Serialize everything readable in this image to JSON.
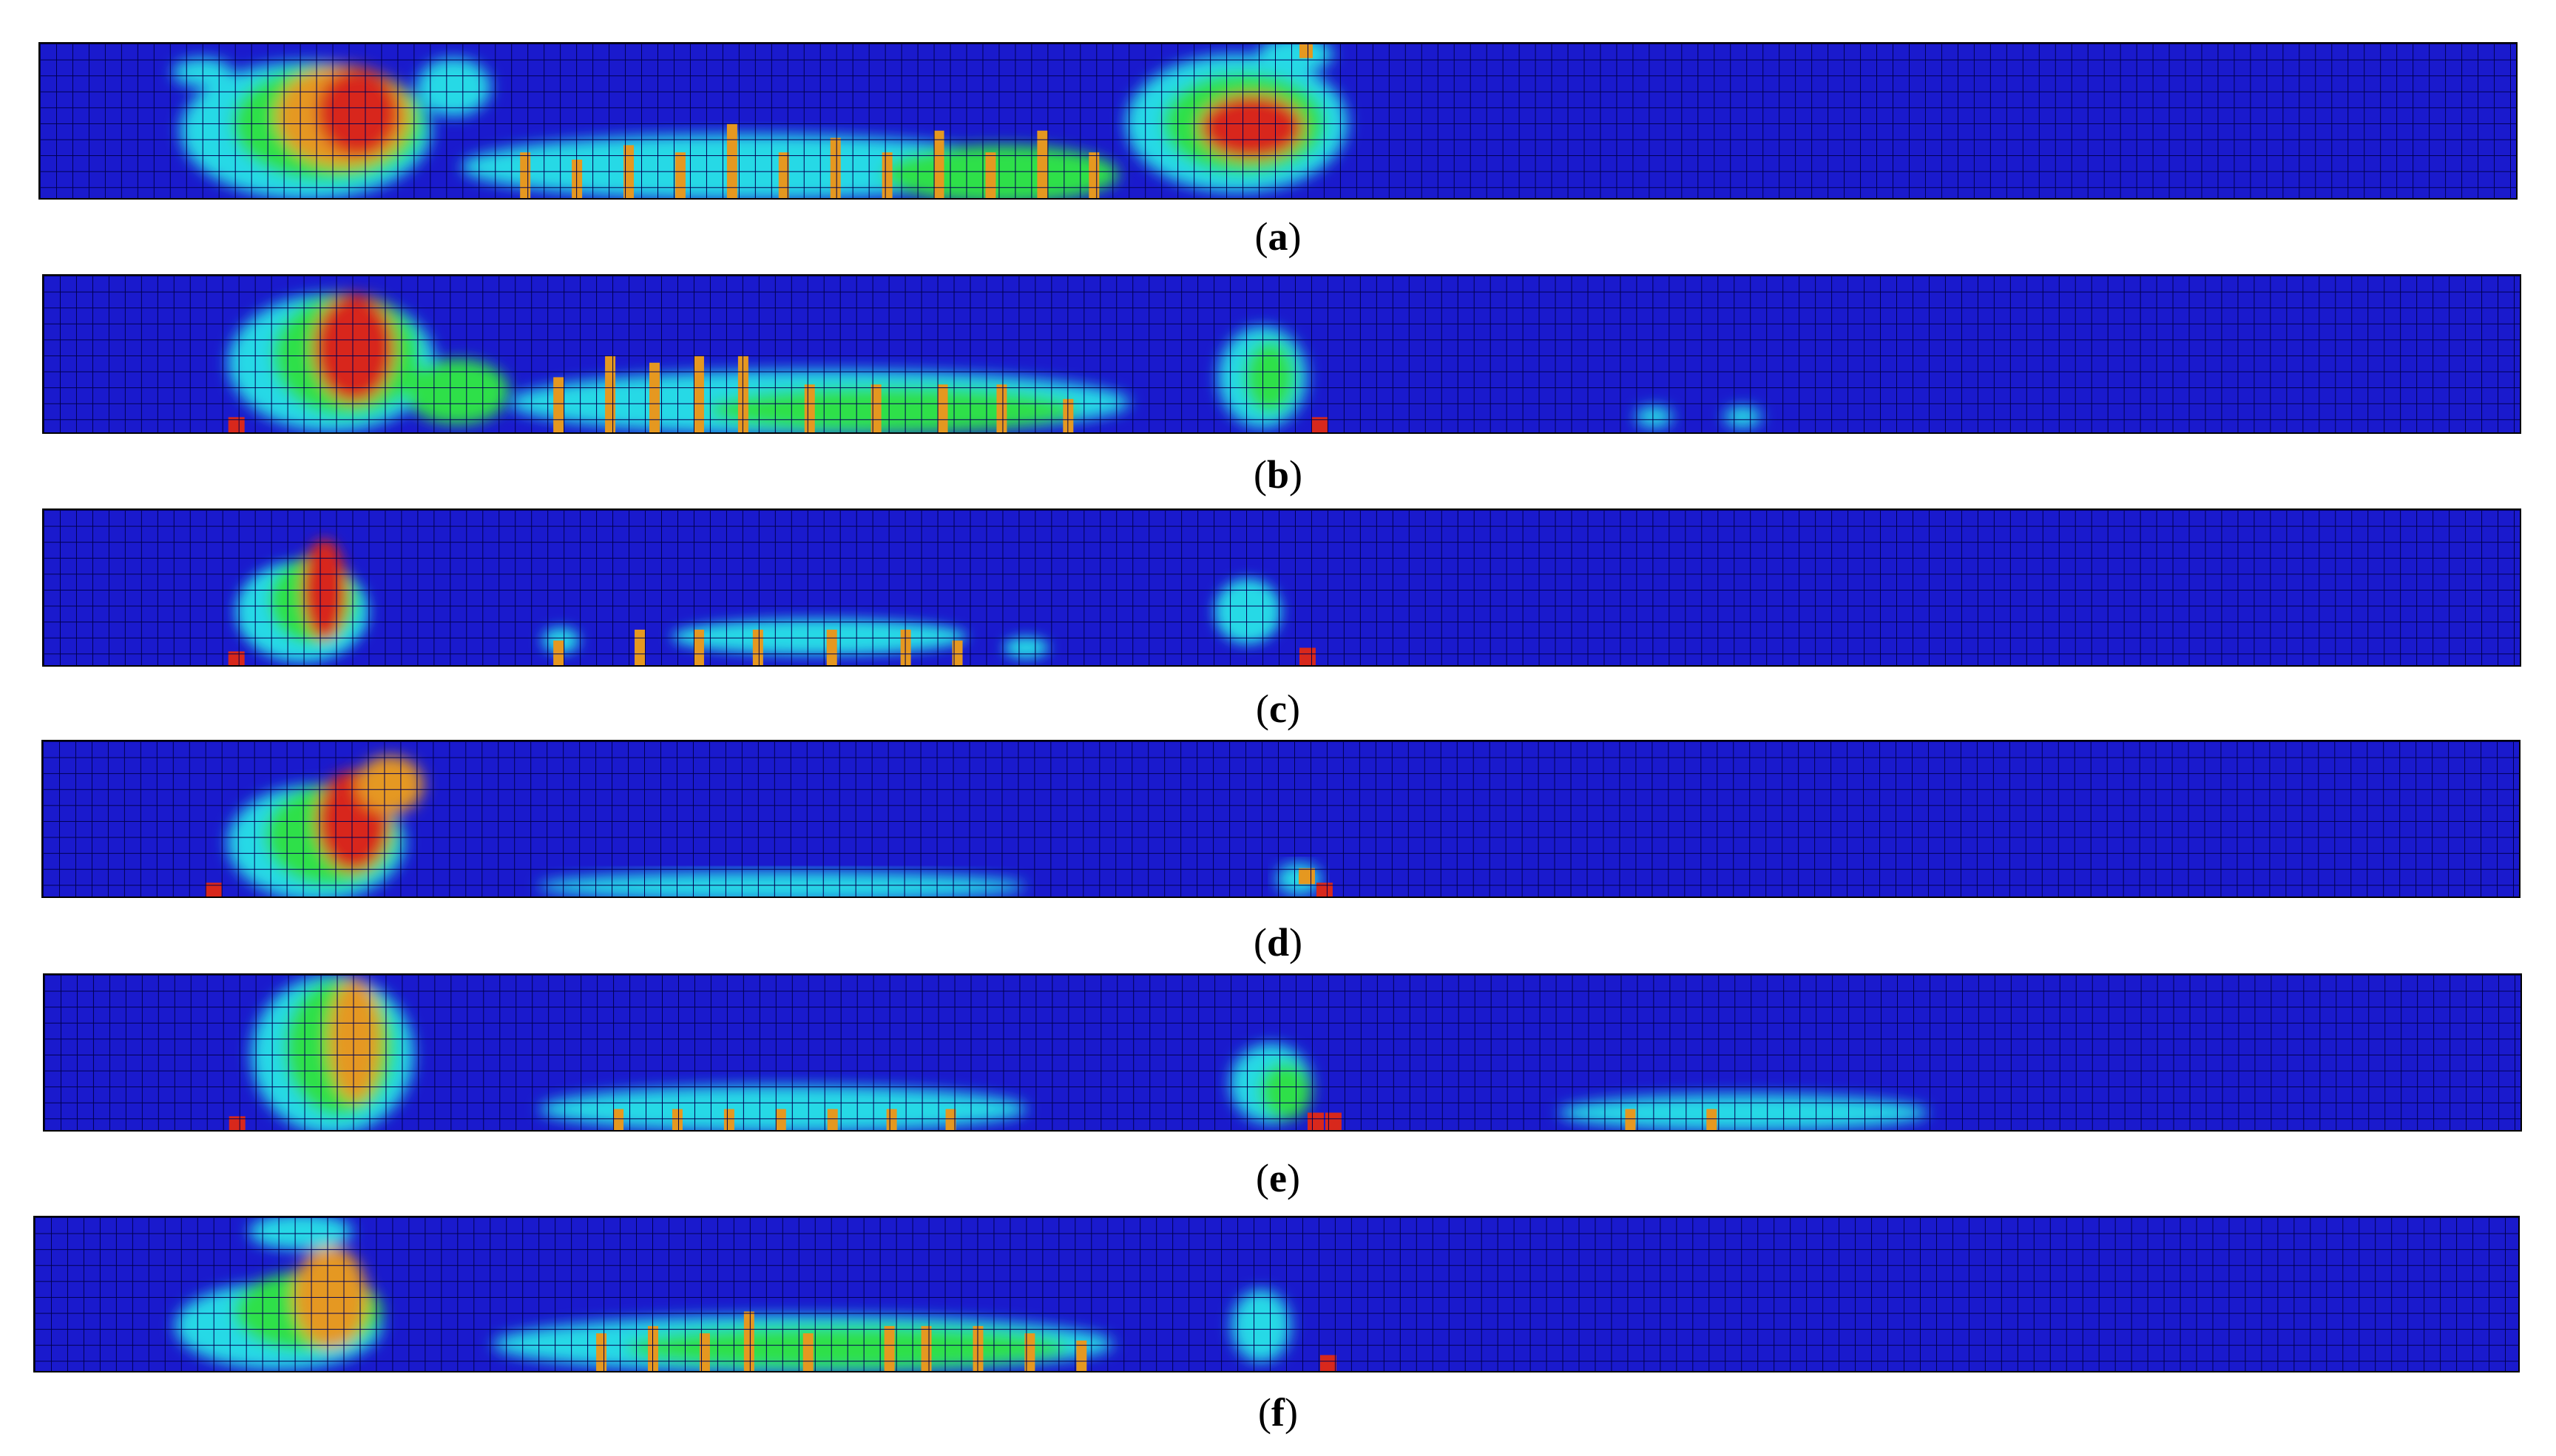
{
  "colors": {
    "background_blue": "#1a1acd",
    "grid_line": "#000050",
    "light_blue": "#2f8bff",
    "cyan": "#27d9e6",
    "green": "#2fe04a",
    "yellow": "#d9e63a",
    "orange": "#e59820",
    "red": "#d8281c"
  },
  "panels": [
    {
      "id": "a",
      "label": "a"
    },
    {
      "id": "b",
      "label": "b"
    },
    {
      "id": "c",
      "label": "c"
    },
    {
      "id": "d",
      "label": "d"
    },
    {
      "id": "e",
      "label": "e"
    },
    {
      "id": "f",
      "label": "f"
    }
  ]
}
